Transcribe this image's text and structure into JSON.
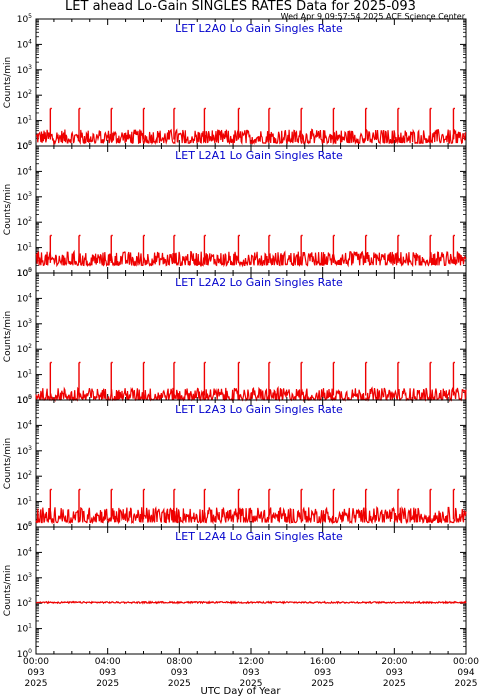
{
  "title": "LET ahead Lo-Gain SINGLES RATES Data for 2025-093",
  "timestamp": "Wed Apr  9 09:57:54 2025 ACE Science Center",
  "x_axis_title": "UTC Day of Year",
  "y_axis_label": "Counts/min",
  "colors": {
    "series": "#ee0000",
    "panel_title": "#0000cc",
    "axis": "#000000"
  },
  "chart_data": [
    {
      "type": "line",
      "title": "LET L2A0 Lo Gain Singles Rate",
      "ylabel": "Counts/min",
      "yscale": "log",
      "ylim": [
        1,
        100000
      ],
      "xlim": [
        0,
        24
      ],
      "x_ticks": [
        "00:00\n093\n2025",
        "04:00\n093\n2025",
        "08:00\n093\n2025",
        "12:00\n093\n2025",
        "16:00\n093\n2025",
        "20:00\n093\n2025",
        "00:00\n094\n2025"
      ],
      "series": [
        {
          "baseline_low": 1.3,
          "baseline_high": 4.5,
          "spike_hours": [
            0.8,
            2.4,
            4.2,
            6.0,
            7.7,
            9.4,
            11.3,
            13.0,
            14.8,
            16.6,
            18.4,
            20.2,
            22.0,
            23.3
          ],
          "spike_value": 30
        }
      ]
    },
    {
      "type": "line",
      "title": "LET L2A1 Lo Gain Singles Rate",
      "ylabel": "Counts/min",
      "yscale": "log",
      "ylim": [
        1,
        100000
      ],
      "xlim": [
        0,
        24
      ],
      "x_ticks": [
        "00:00\n093\n2025",
        "04:00\n093\n2025",
        "08:00\n093\n2025",
        "12:00\n093\n2025",
        "16:00\n093\n2025",
        "20:00\n093\n2025",
        "00:00\n094\n2025"
      ],
      "series": [
        {
          "baseline_low": 2.0,
          "baseline_high": 7.0,
          "spike_hours": [
            0.8,
            2.4,
            4.2,
            6.0,
            7.7,
            9.4,
            11.3,
            13.0,
            14.8,
            16.6,
            18.4,
            20.2,
            22.0,
            23.3
          ],
          "spike_value": 30
        }
      ]
    },
    {
      "type": "line",
      "title": "LET L2A2 Lo Gain Singles Rate",
      "ylabel": "Counts/min",
      "yscale": "log",
      "ylim": [
        1,
        100000
      ],
      "xlim": [
        0,
        24
      ],
      "x_ticks": [
        "00:00\n093\n2025",
        "04:00\n093\n2025",
        "08:00\n093\n2025",
        "12:00\n093\n2025",
        "16:00\n093\n2025",
        "20:00\n093\n2025",
        "00:00\n094\n2025"
      ],
      "series": [
        {
          "baseline_low": 1.0,
          "baseline_high": 3.0,
          "spike_hours": [
            0.8,
            2.4,
            4.2,
            6.0,
            7.7,
            9.4,
            11.3,
            13.0,
            14.8,
            16.6,
            18.4,
            20.2,
            22.0,
            23.3
          ],
          "spike_value": 30
        }
      ]
    },
    {
      "type": "line",
      "title": "LET L2A3 Lo Gain Singles Rate",
      "ylabel": "Counts/min",
      "yscale": "log",
      "ylim": [
        1,
        100000
      ],
      "xlim": [
        0,
        24
      ],
      "x_ticks": [
        "00:00\n093\n2025",
        "04:00\n093\n2025",
        "08:00\n093\n2025",
        "12:00\n093\n2025",
        "16:00\n093\n2025",
        "20:00\n093\n2025",
        "00:00\n094\n2025"
      ],
      "series": [
        {
          "baseline_low": 1.5,
          "baseline_high": 6.0,
          "spike_hours": [
            0.8,
            2.4,
            4.2,
            6.0,
            7.7,
            9.4,
            11.3,
            13.0,
            14.8,
            16.6,
            18.4,
            20.2,
            22.0,
            23.3
          ],
          "spike_value": 30
        }
      ]
    },
    {
      "type": "line",
      "title": "LET L2A4 Lo Gain Singles Rate",
      "ylabel": "Counts/min",
      "yscale": "log",
      "ylim": [
        1,
        100000
      ],
      "xlim": [
        0,
        24
      ],
      "x_ticks": [
        "00:00\n093\n2025",
        "04:00\n093\n2025",
        "08:00\n093\n2025",
        "12:00\n093\n2025",
        "16:00\n093\n2025",
        "20:00\n093\n2025",
        "00:00\n094\n2025"
      ],
      "series": [
        {
          "baseline_low": 100,
          "baseline_high": 115,
          "spike_hours": [],
          "spike_value": 115
        }
      ]
    }
  ]
}
